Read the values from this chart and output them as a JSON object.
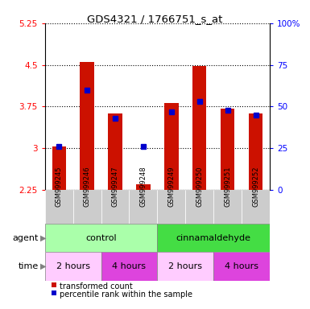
{
  "title": "GDS4321 / 1766751_s_at",
  "samples": [
    "GSM999245",
    "GSM999246",
    "GSM999247",
    "GSM999248",
    "GSM999249",
    "GSM999250",
    "GSM999251",
    "GSM999252"
  ],
  "transformed_counts": [
    3.03,
    4.55,
    3.62,
    2.35,
    3.82,
    4.48,
    3.72,
    3.62
  ],
  "percentile_ranks": [
    26,
    60,
    43,
    26,
    47,
    53,
    48,
    45
  ],
  "ylim_left": [
    2.25,
    5.25
  ],
  "ylim_right": [
    0,
    100
  ],
  "yticks_left": [
    2.25,
    3.0,
    3.75,
    4.5,
    5.25
  ],
  "yticks_right": [
    0,
    25,
    50,
    75,
    100
  ],
  "ytick_labels_left": [
    "2.25",
    "3",
    "3.75",
    "4.5",
    "5.25"
  ],
  "ytick_labels_right": [
    "0",
    "25",
    "50",
    "75",
    "100%"
  ],
  "bar_color": "#cc1100",
  "percentile_color": "#0000cc",
  "agent_groups": [
    {
      "label": "control",
      "start": 0,
      "end": 4,
      "color": "#aaffaa"
    },
    {
      "label": "cinnamaldehyde",
      "start": 4,
      "end": 8,
      "color": "#44dd44"
    }
  ],
  "time_groups": [
    {
      "label": "2 hours",
      "start": 0,
      "end": 2,
      "color": "#ffccff"
    },
    {
      "label": "4 hours",
      "start": 2,
      "end": 4,
      "color": "#dd44dd"
    },
    {
      "label": "2 hours",
      "start": 4,
      "end": 6,
      "color": "#ffccff"
    },
    {
      "label": "4 hours",
      "start": 6,
      "end": 8,
      "color": "#dd44dd"
    }
  ],
  "legend_items": [
    {
      "label": "transformed count",
      "color": "#cc1100"
    },
    {
      "label": "percentile rank within the sample",
      "color": "#0000cc"
    }
  ],
  "plot_bg": "#ffffff",
  "bar_width": 0.5,
  "base_value": 2.25,
  "sample_bg": "#cccccc"
}
